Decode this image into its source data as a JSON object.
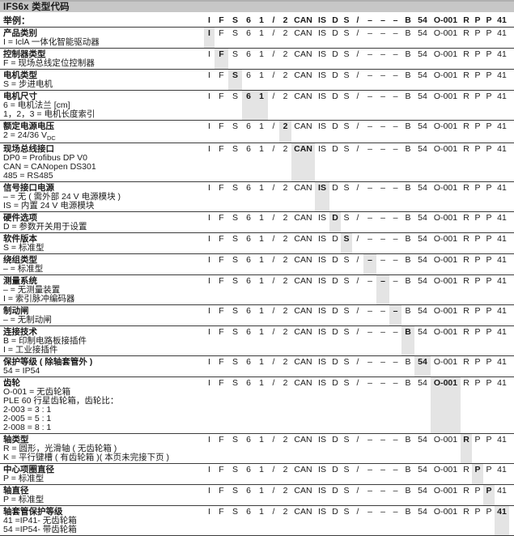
{
  "title": "IFS6x 类型代码",
  "example_label": "举例：",
  "code_columns": [
    "I",
    "F",
    "S",
    "6",
    "1",
    "/",
    "2",
    "CAN",
    "IS",
    "D",
    "S",
    "/",
    "–",
    "–",
    "–",
    "B",
    "54",
    "O-001",
    "R",
    "P",
    "P",
    "41"
  ],
  "colors": {
    "highlight": "#e4e4e4",
    "title_bar": "#c7c7c7"
  },
  "rows": [
    {
      "label": "产品类别",
      "lines": [
        "I = IclA 一体化智能驱动器"
      ],
      "highlight": [
        0
      ]
    },
    {
      "label": "控制器类型",
      "lines": [
        "F = 现场总线定位控制器"
      ],
      "highlight": [
        1
      ]
    },
    {
      "label": "电机类型",
      "lines": [
        "S = 步进电机"
      ],
      "highlight": [
        2
      ]
    },
    {
      "label": "电机尺寸",
      "lines": [
        "6 = 电机法兰 [cm]",
        "1，2，3 = 电机长度索引"
      ],
      "highlight": [
        3,
        4
      ]
    },
    {
      "label": "额定电源电压",
      "lines": [
        "2 = 24/36 V~DC~"
      ],
      "highlight": [
        6
      ]
    },
    {
      "label": "现场总线接口",
      "lines": [
        "DP0 = Profibus DP V0",
        "CAN = CANopen DS301",
        "485 = RS485"
      ],
      "highlight": [
        7
      ]
    },
    {
      "label": "信号接口电源",
      "lines": [
        "– = 无 ( 需外部 24 V 电源模块 )",
        "IS = 内置 24 V 电源模块"
      ],
      "highlight": [
        8
      ]
    },
    {
      "label": "硬件选项",
      "lines": [
        "D = 参数开关用于设置"
      ],
      "highlight": [
        9
      ]
    },
    {
      "label": "软件版本",
      "lines": [
        "S = 标准型"
      ],
      "highlight": [
        10
      ]
    },
    {
      "label": "绕组类型",
      "lines": [
        "– = 标准型"
      ],
      "highlight": [
        12
      ]
    },
    {
      "label": "测量系统",
      "lines": [
        "– = 无测量装置",
        "I = 索引脉冲编码器"
      ],
      "highlight": [
        13
      ]
    },
    {
      "label": "制动闸",
      "lines": [
        "– = 无制动闸"
      ],
      "highlight": [
        14
      ]
    },
    {
      "label": "连接技术",
      "lines": [
        "B = 印制电路板接插件",
        "I = 工业接插件"
      ],
      "highlight": [
        15
      ]
    },
    {
      "label": "保护等级 ( 除轴套管外 )",
      "lines": [
        "54 = IP54"
      ],
      "highlight": [
        16
      ]
    },
    {
      "label": "齿轮",
      "lines": [
        "O-001 = 无齿轮箱",
        "PLE 60 行星齿轮箱，齿轮比：",
        "2-003 = 3 : 1",
        "2-005 = 5 : 1",
        "2-008 = 8 : 1"
      ],
      "highlight": [
        17
      ]
    },
    {
      "label": "轴类型",
      "lines": [
        "R = 圆形，光滑轴 ( 无齿轮箱 )",
        "K = 平行键槽 ( 有齿轮箱 )( 本页未完接下页 )"
      ],
      "highlight": [
        18
      ]
    },
    {
      "label": "中心项圈直径",
      "lines": [
        "P = 标准型"
      ],
      "highlight": [
        19
      ]
    },
    {
      "label": "轴直径",
      "lines": [
        "P = 标准型"
      ],
      "highlight": [
        20
      ]
    },
    {
      "label": "轴套管保护等级",
      "lines": [
        "41 =IP41- 无齿轮箱",
        "54 =IP54- 带齿轮箱"
      ],
      "highlight": [
        21
      ]
    }
  ]
}
